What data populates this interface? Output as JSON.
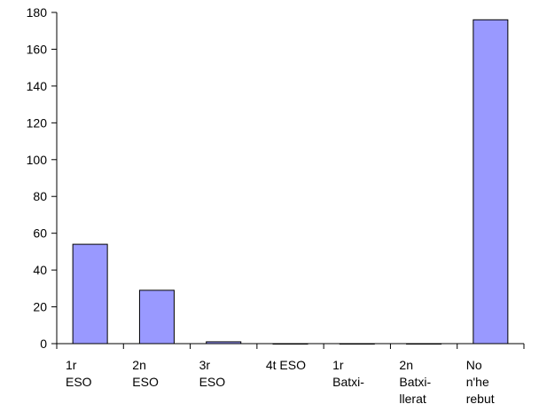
{
  "chart_data": {
    "type": "bar",
    "title": "",
    "xlabel": "",
    "ylabel": "",
    "ylim": [
      0,
      180
    ],
    "yticks": [
      0,
      20,
      40,
      60,
      80,
      100,
      120,
      140,
      160,
      180
    ],
    "grid": false,
    "legend": "none",
    "categories": [
      [
        "1r",
        "ESO"
      ],
      [
        "2n",
        "ESO"
      ],
      [
        "3r",
        "ESO"
      ],
      [
        "4t ESO"
      ],
      [
        "1r",
        "Batxi-"
      ],
      [
        "2n",
        "Batxi-",
        "llerat"
      ],
      [
        "No",
        "n'he",
        "rebut"
      ]
    ],
    "series": [
      {
        "values": [
          54,
          29,
          1,
          0,
          0,
          0,
          176
        ],
        "color": "#9999ff"
      }
    ]
  }
}
